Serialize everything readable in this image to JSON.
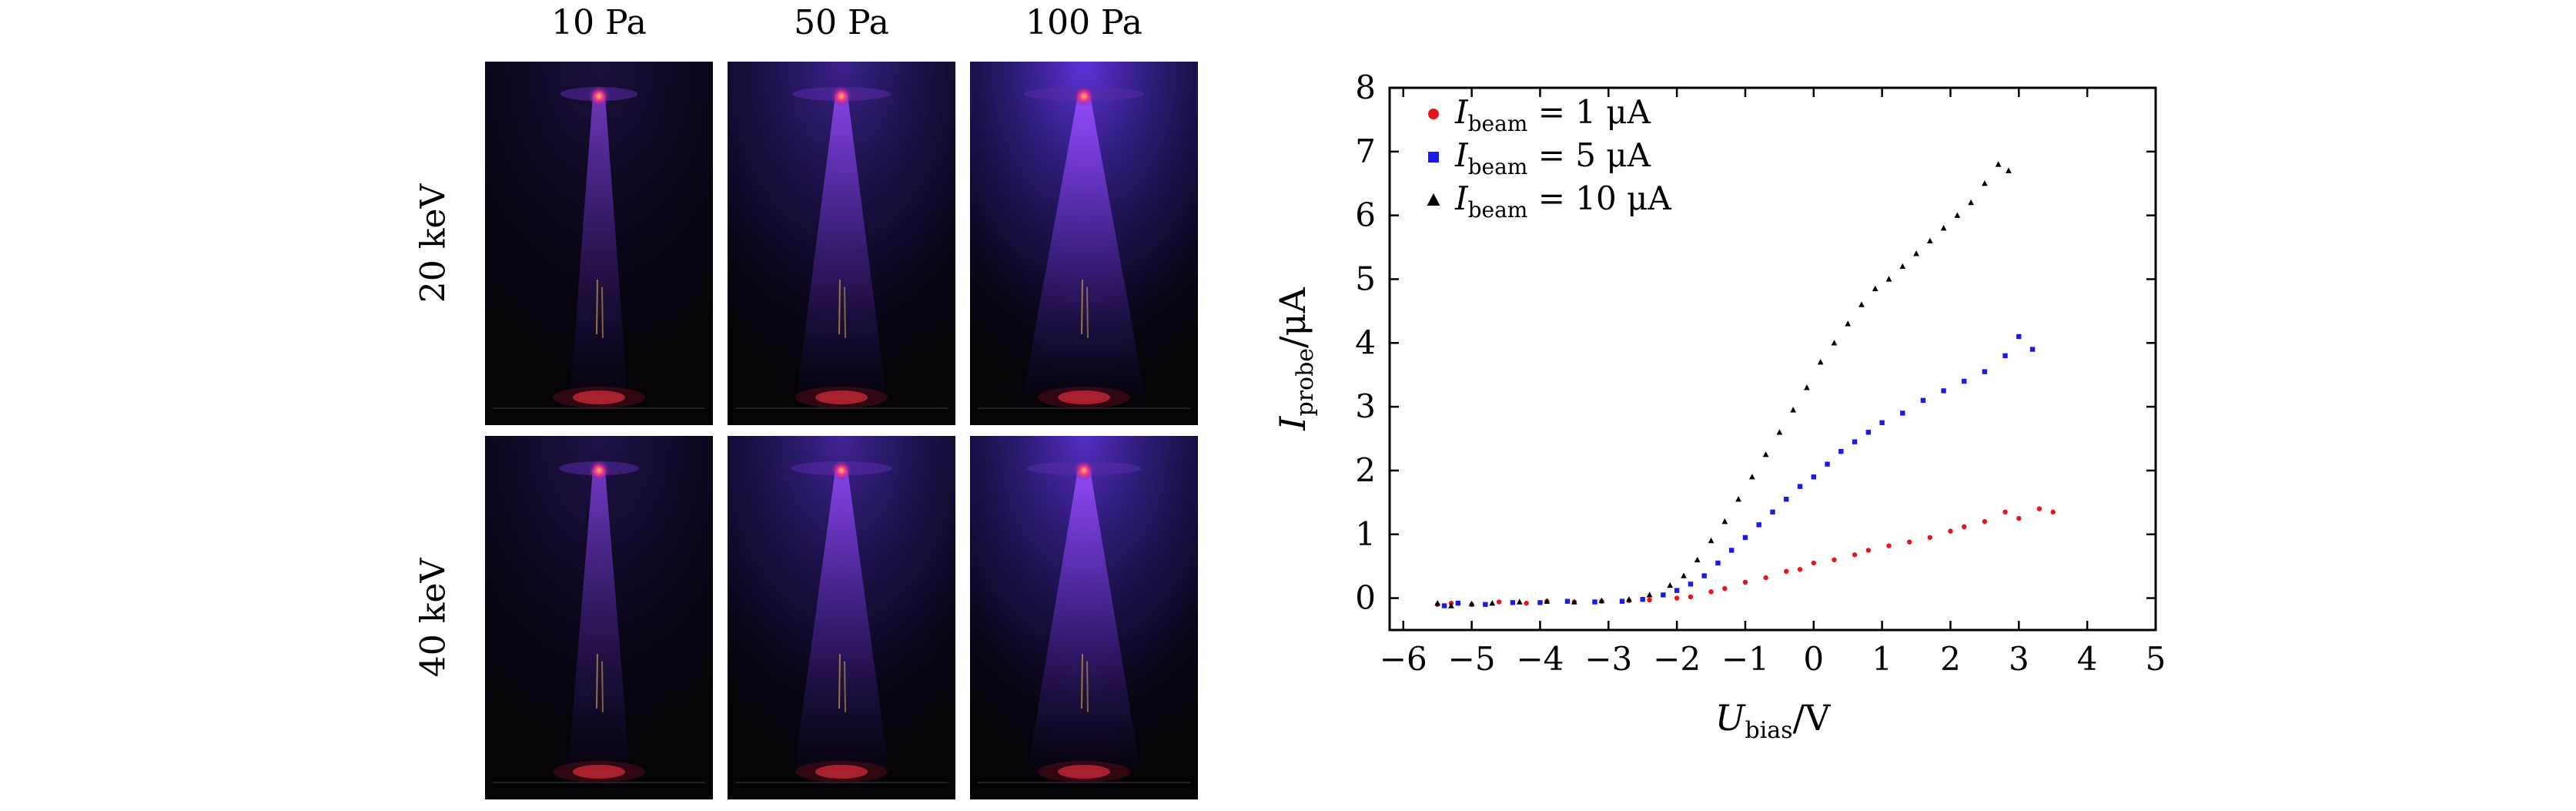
{
  "panel_images": {
    "column_labels": [
      "10 Pa",
      "50 Pa",
      "100 Pa"
    ],
    "row_labels": [
      "20 keV",
      "40 keV"
    ],
    "cells": [
      {
        "row": 0,
        "col": 0,
        "name": "photo-20kev-10pa",
        "glow": 0.25
      },
      {
        "row": 0,
        "col": 1,
        "name": "photo-20kev-50pa",
        "glow": 0.6
      },
      {
        "row": 0,
        "col": 2,
        "name": "photo-20kev-100pa",
        "glow": 0.95
      },
      {
        "row": 1,
        "col": 0,
        "name": "photo-40kev-10pa",
        "glow": 0.3
      },
      {
        "row": 1,
        "col": 1,
        "name": "photo-40kev-50pa",
        "glow": 0.65
      },
      {
        "row": 1,
        "col": 2,
        "name": "photo-40kev-100pa",
        "glow": 0.85
      }
    ]
  },
  "chart_data": {
    "type": "scatter",
    "xlabel_var": "U",
    "xlabel_sub": "bias",
    "xlabel_unit": "/V",
    "ylabel_var": "I",
    "ylabel_sub": "probe",
    "ylabel_unit": "/μA",
    "xlim": [
      -6.2,
      5
    ],
    "ylim": [
      -0.5,
      8
    ],
    "xticks": [
      -6,
      -5,
      -4,
      -3,
      -2,
      -1,
      0,
      1,
      2,
      3,
      4,
      5
    ],
    "xtick_labels": [
      "−6",
      "−5",
      "−4",
      "−3",
      "−2",
      "−1",
      "0",
      "1",
      "2",
      "3",
      "4",
      "5"
    ],
    "yticks": [
      0,
      1,
      2,
      3,
      4,
      5,
      6,
      7,
      8
    ],
    "ytick_labels": [
      "0",
      "1",
      "2",
      "3",
      "4",
      "5",
      "6",
      "7",
      "8"
    ],
    "legend_position": "top-left",
    "series": [
      {
        "legend_var": "I",
        "legend_sub": "beam",
        "legend_rest": " = 1 μA",
        "color": "#e8141c",
        "marker": "circle",
        "points": [
          [
            -5.5,
            -0.1
          ],
          [
            -5.3,
            -0.08
          ],
          [
            -5.0,
            -0.1
          ],
          [
            -4.6,
            -0.06
          ],
          [
            -4.2,
            -0.08
          ],
          [
            -3.9,
            -0.05
          ],
          [
            -3.5,
            -0.06
          ],
          [
            -3.1,
            -0.05
          ],
          [
            -2.7,
            -0.04
          ],
          [
            -2.4,
            -0.03
          ],
          [
            -2.0,
            0.0
          ],
          [
            -1.8,
            0.02
          ],
          [
            -1.5,
            0.1
          ],
          [
            -1.3,
            0.15
          ],
          [
            -1.0,
            0.25
          ],
          [
            -0.7,
            0.32
          ],
          [
            -0.4,
            0.42
          ],
          [
            -0.2,
            0.45
          ],
          [
            0.0,
            0.55
          ],
          [
            0.3,
            0.6
          ],
          [
            0.6,
            0.68
          ],
          [
            0.8,
            0.75
          ],
          [
            1.1,
            0.82
          ],
          [
            1.4,
            0.88
          ],
          [
            1.7,
            0.95
          ],
          [
            2.0,
            1.05
          ],
          [
            2.2,
            1.12
          ],
          [
            2.5,
            1.2
          ],
          [
            2.8,
            1.35
          ],
          [
            3.0,
            1.25
          ],
          [
            3.3,
            1.4
          ],
          [
            3.5,
            1.35
          ]
        ]
      },
      {
        "legend_var": "I",
        "legend_sub": "beam",
        "legend_rest": " = 5 μA",
        "color": "#1a1aee",
        "marker": "square",
        "points": [
          [
            -5.4,
            -0.12
          ],
          [
            -5.2,
            -0.08
          ],
          [
            -4.8,
            -0.1
          ],
          [
            -4.4,
            -0.07
          ],
          [
            -4.0,
            -0.07
          ],
          [
            -3.6,
            -0.05
          ],
          [
            -3.2,
            -0.06
          ],
          [
            -2.8,
            -0.05
          ],
          [
            -2.5,
            -0.02
          ],
          [
            -2.2,
            0.05
          ],
          [
            -2.0,
            0.12
          ],
          [
            -1.8,
            0.22
          ],
          [
            -1.6,
            0.35
          ],
          [
            -1.4,
            0.55
          ],
          [
            -1.2,
            0.75
          ],
          [
            -1.0,
            0.95
          ],
          [
            -0.8,
            1.15
          ],
          [
            -0.6,
            1.35
          ],
          [
            -0.4,
            1.55
          ],
          [
            -0.2,
            1.75
          ],
          [
            0.0,
            1.9
          ],
          [
            0.2,
            2.1
          ],
          [
            0.4,
            2.3
          ],
          [
            0.6,
            2.45
          ],
          [
            0.8,
            2.6
          ],
          [
            1.0,
            2.75
          ],
          [
            1.3,
            2.9
          ],
          [
            1.6,
            3.1
          ],
          [
            1.9,
            3.25
          ],
          [
            2.2,
            3.4
          ],
          [
            2.5,
            3.55
          ],
          [
            2.8,
            3.8
          ],
          [
            3.0,
            4.1
          ],
          [
            3.2,
            3.9
          ]
        ]
      },
      {
        "legend_var": "I",
        "legend_sub": "beam",
        "legend_rest": " = 10 μA",
        "color": "#000000",
        "marker": "triangle",
        "points": [
          [
            -5.5,
            -0.08
          ],
          [
            -5.3,
            -0.12
          ],
          [
            -5.0,
            -0.09
          ],
          [
            -4.7,
            -0.08
          ],
          [
            -4.3,
            -0.06
          ],
          [
            -3.9,
            -0.05
          ],
          [
            -3.5,
            -0.06
          ],
          [
            -3.1,
            -0.04
          ],
          [
            -2.7,
            -0.02
          ],
          [
            -2.4,
            0.05
          ],
          [
            -2.1,
            0.2
          ],
          [
            -1.9,
            0.35
          ],
          [
            -1.7,
            0.6
          ],
          [
            -1.5,
            0.9
          ],
          [
            -1.3,
            1.2
          ],
          [
            -1.1,
            1.55
          ],
          [
            -0.9,
            1.9
          ],
          [
            -0.7,
            2.25
          ],
          [
            -0.5,
            2.6
          ],
          [
            -0.3,
            2.95
          ],
          [
            -0.1,
            3.3
          ],
          [
            0.1,
            3.7
          ],
          [
            0.3,
            4.0
          ],
          [
            0.5,
            4.3
          ],
          [
            0.7,
            4.6
          ],
          [
            0.9,
            4.85
          ],
          [
            1.1,
            5.0
          ],
          [
            1.3,
            5.2
          ],
          [
            1.5,
            5.4
          ],
          [
            1.7,
            5.6
          ],
          [
            1.9,
            5.8
          ],
          [
            2.1,
            6.0
          ],
          [
            2.3,
            6.2
          ],
          [
            2.5,
            6.5
          ],
          [
            2.7,
            6.8
          ],
          [
            2.85,
            6.7
          ]
        ]
      }
    ]
  }
}
